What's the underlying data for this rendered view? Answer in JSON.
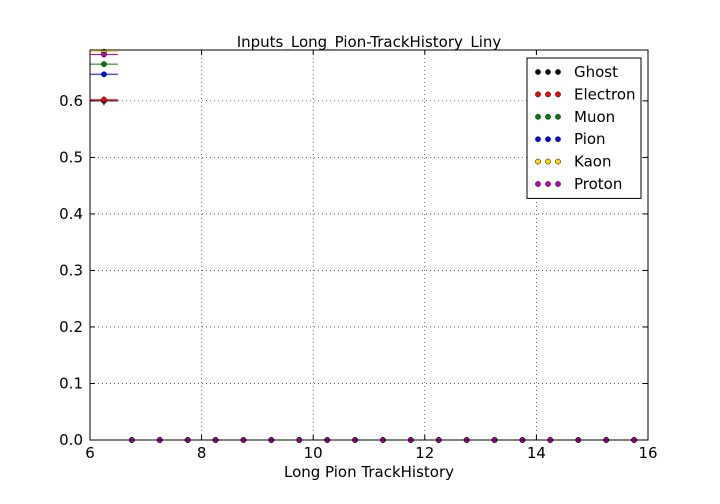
{
  "chart_data": {
    "type": "scatter",
    "title": "Inputs_Long_Pion-TrackHistory_Liny",
    "xlabel": "Long Pion TrackHistory",
    "ylabel": "",
    "xlim": [
      6,
      16
    ],
    "ylim": [
      0,
      0.69
    ],
    "x_ticks": [
      "6",
      "8",
      "10",
      "12",
      "14",
      "16"
    ],
    "y_ticks": [
      "0.0",
      "0.1",
      "0.2",
      "0.3",
      "0.4",
      "0.5",
      "0.6"
    ],
    "grid": true,
    "legend_position": "top-right",
    "x": [
      6.25,
      6.75,
      7.25,
      7.75,
      8.25,
      8.75,
      9.25,
      9.75,
      10.25,
      10.75,
      11.25,
      11.75,
      12.25,
      12.75,
      13.25,
      13.75,
      14.25,
      14.75,
      15.25,
      15.75
    ],
    "series": [
      {
        "name": "Ghost",
        "color": "#000000",
        "values": [
          0.6,
          0,
          0,
          0,
          0,
          0,
          0,
          0,
          0,
          0,
          0,
          0,
          0,
          0,
          0,
          0,
          0,
          0,
          0,
          0
        ],
        "yerr": 0.008
      },
      {
        "name": "Electron",
        "color": "#ff0000",
        "values": [
          0.602,
          0,
          0,
          0,
          0,
          0,
          0,
          0,
          0,
          0,
          0,
          0,
          0,
          0,
          0,
          0,
          0,
          0,
          0,
          0
        ],
        "yerr": 0.004
      },
      {
        "name": "Muon",
        "color": "#008000",
        "values": [
          0.665,
          0,
          0,
          0,
          0,
          0,
          0,
          0,
          0,
          0,
          0,
          0,
          0,
          0,
          0,
          0,
          0,
          0,
          0,
          0
        ],
        "yerr": 0.002
      },
      {
        "name": "Pion",
        "color": "#0000ff",
        "values": [
          0.647,
          0,
          0,
          0,
          0,
          0,
          0,
          0,
          0,
          0,
          0,
          0,
          0,
          0,
          0,
          0,
          0,
          0,
          0,
          0
        ],
        "yerr": 0.002
      },
      {
        "name": "Kaon",
        "color": "#ffd700",
        "values": [
          0.687,
          0,
          0,
          0,
          0,
          0,
          0,
          0,
          0,
          0,
          0,
          0,
          0,
          0,
          0,
          0,
          0,
          0,
          0,
          0
        ],
        "yerr": 0.002
      },
      {
        "name": "Proton",
        "color": "#c000c0",
        "values": [
          0.682,
          0,
          0,
          0,
          0,
          0,
          0,
          0,
          0,
          0,
          0,
          0,
          0,
          0,
          0,
          0,
          0,
          0,
          0,
          0
        ],
        "yerr": 0.002
      }
    ],
    "xerr": 0.25
  }
}
